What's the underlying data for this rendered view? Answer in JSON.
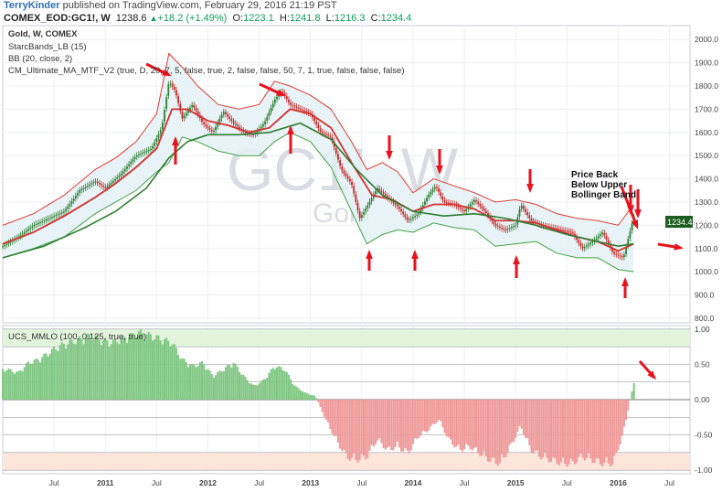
{
  "header": {
    "author": "TerryKinder",
    "published": "published on TradingView.com, February 29, 2016 21:19 PST"
  },
  "symbol_bar": {
    "symbol": "COMEX_EOD:GC1!, W",
    "last": "1238.6",
    "change": "+18.2 (+1.49%)",
    "open_label": "O:",
    "open": "1223.1",
    "high_label": "H:",
    "high": "1241.8",
    "low_label": "L:",
    "low": "1216.3",
    "close_label": "C:",
    "close": "1234.4"
  },
  "main_legend": {
    "line1": "Gold, W, COMEX",
    "line2": "StarcBands_LB (15)",
    "line3": "BB (20, close, 2)",
    "line4": "CM_Ultimate_MA_MTF_V2 (true, D, 20, 7, 5, false, true, 2, false, false, 50, 7, 1, true, false, false, false)"
  },
  "watermark": {
    "big": "GC1!, W",
    "small": "Gold"
  },
  "annotation": {
    "line1": "Price Back",
    "line2": "Below Upper",
    "line3": "Bollinger Band"
  },
  "last_price_tag": "1234.4",
  "osc_legend": "UCS_MMLO (100, 0.125, true, true)",
  "colors": {
    "price_up": "#2e7d32",
    "price_down": "#c62828",
    "bb_upper": "#e53935",
    "bb_lower": "#43a047",
    "ma": "#d32f2f",
    "band_fill": "#e3f1f4",
    "osc_pos": "#81c784",
    "osc_neg": "#ef9a9a",
    "arrow": "#e8121d"
  },
  "chart_data": [
    {
      "type": "line",
      "title": "Gold, W, COMEX",
      "ylim": [
        780,
        2060
      ],
      "y_ticks": [
        "2000.0",
        "1900.0",
        "1800.0",
        "1700.0",
        "1600.0",
        "1500.0",
        "1400.0",
        "1300.0",
        "1200.0",
        "1100.0",
        "1000.0",
        "900.0",
        "800.0"
      ],
      "y_tick_values": [
        2000,
        1900,
        1800,
        1700,
        1600,
        1500,
        1400,
        1300,
        1200,
        1100,
        1000,
        900,
        800
      ],
      "x_ticks": [
        "Jul",
        "2011",
        "Jul",
        "2012",
        "Jul",
        "2013",
        "Jul",
        "2014",
        "Jul",
        "2015",
        "Jul",
        "2016",
        "Jul"
      ],
      "x_tick_values": [
        2010.5,
        2011.0,
        2011.5,
        2012.0,
        2012.5,
        2013.0,
        2013.5,
        2014.0,
        2014.5,
        2015.0,
        2015.5,
        2016.0,
        2016.5
      ],
      "x_range": [
        2010.0,
        2016.7
      ],
      "series": [
        {
          "key": "close",
          "x": [
            2010.0,
            2010.15,
            2010.3,
            2010.45,
            2010.6,
            2010.75,
            2010.9,
            2011.0,
            2011.15,
            2011.3,
            2011.45,
            2011.55,
            2011.62,
            2011.68,
            2011.75,
            2011.85,
            2011.95,
            2012.05,
            2012.15,
            2012.25,
            2012.35,
            2012.45,
            2012.55,
            2012.65,
            2012.72,
            2012.8,
            2012.9,
            2013.0,
            2013.1,
            2013.2,
            2013.3,
            2013.4,
            2013.48,
            2013.55,
            2013.65,
            2013.75,
            2013.85,
            2013.95,
            2014.05,
            2014.15,
            2014.22,
            2014.3,
            2014.4,
            2014.5,
            2014.6,
            2014.7,
            2014.8,
            2014.9,
            2015.0,
            2015.05,
            2015.15,
            2015.25,
            2015.35,
            2015.45,
            2015.55,
            2015.65,
            2015.75,
            2015.85,
            2015.95,
            2016.05,
            2016.15
          ],
          "y": [
            1110,
            1150,
            1200,
            1230,
            1260,
            1350,
            1390,
            1360,
            1420,
            1500,
            1530,
            1620,
            1820,
            1780,
            1660,
            1720,
            1640,
            1600,
            1690,
            1640,
            1600,
            1590,
            1640,
            1740,
            1780,
            1720,
            1700,
            1680,
            1600,
            1580,
            1440,
            1380,
            1230,
            1280,
            1360,
            1320,
            1280,
            1220,
            1250,
            1330,
            1370,
            1300,
            1290,
            1260,
            1310,
            1260,
            1200,
            1180,
            1200,
            1290,
            1220,
            1200,
            1190,
            1180,
            1170,
            1100,
            1130,
            1170,
            1080,
            1060,
            1235
          ]
        },
        {
          "key": "bb_upper",
          "x": [
            2010.0,
            2010.3,
            2010.6,
            2010.9,
            2011.1,
            2011.3,
            2011.5,
            2011.62,
            2011.75,
            2011.9,
            2012.1,
            2012.3,
            2012.5,
            2012.65,
            2012.8,
            2013.0,
            2013.2,
            2013.4,
            2013.55,
            2013.7,
            2013.85,
            2014.0,
            2014.2,
            2014.4,
            2014.6,
            2014.8,
            2015.0,
            2015.2,
            2015.4,
            2015.6,
            2015.8,
            2016.0,
            2016.15
          ],
          "y": [
            1200,
            1250,
            1330,
            1440,
            1490,
            1560,
            1680,
            1940,
            1880,
            1800,
            1720,
            1700,
            1720,
            1820,
            1800,
            1760,
            1700,
            1560,
            1440,
            1470,
            1430,
            1340,
            1400,
            1370,
            1340,
            1300,
            1310,
            1290,
            1250,
            1230,
            1220,
            1200,
            1290
          ]
        },
        {
          "key": "bb_lower",
          "x": [
            2010.0,
            2010.3,
            2010.6,
            2010.9,
            2011.1,
            2011.3,
            2011.5,
            2011.62,
            2011.75,
            2011.9,
            2012.1,
            2012.3,
            2012.5,
            2012.65,
            2012.8,
            2013.0,
            2013.2,
            2013.4,
            2013.55,
            2013.7,
            2013.85,
            2014.0,
            2014.2,
            2014.4,
            2014.6,
            2014.8,
            2015.0,
            2015.2,
            2015.4,
            2015.6,
            2015.8,
            2016.0,
            2016.15
          ],
          "y": [
            1060,
            1100,
            1150,
            1250,
            1300,
            1350,
            1430,
            1470,
            1580,
            1560,
            1520,
            1500,
            1500,
            1560,
            1600,
            1560,
            1450,
            1260,
            1120,
            1160,
            1180,
            1170,
            1210,
            1190,
            1180,
            1110,
            1120,
            1130,
            1080,
            1060,
            1060,
            1010,
            1000
          ]
        },
        {
          "key": "ma",
          "x": [
            2010.0,
            2010.3,
            2010.6,
            2010.9,
            2011.1,
            2011.3,
            2011.5,
            2011.65,
            2011.8,
            2012.0,
            2012.2,
            2012.4,
            2012.6,
            2012.8,
            2013.0,
            2013.2,
            2013.4,
            2013.6,
            2013.8,
            2014.0,
            2014.2,
            2014.4,
            2014.6,
            2014.8,
            2015.0,
            2015.2,
            2015.4,
            2015.6,
            2015.8,
            2016.0,
            2016.15
          ],
          "y": [
            1120,
            1170,
            1240,
            1320,
            1380,
            1450,
            1530,
            1700,
            1700,
            1650,
            1630,
            1600,
            1620,
            1700,
            1680,
            1620,
            1470,
            1330,
            1310,
            1260,
            1290,
            1290,
            1270,
            1220,
            1220,
            1210,
            1180,
            1150,
            1130,
            1090,
            1120
          ]
        },
        {
          "key": "slow_ma",
          "x": [
            2010.0,
            2010.4,
            2010.8,
            2011.1,
            2011.4,
            2011.62,
            2011.8,
            2012.0,
            2012.3,
            2012.6,
            2012.9,
            2013.2,
            2013.45,
            2013.7,
            2014.0,
            2014.3,
            2014.6,
            2014.9,
            2015.2,
            2015.5,
            2015.8,
            2016.0,
            2016.15
          ],
          "y": [
            1060,
            1110,
            1190,
            1260,
            1360,
            1490,
            1560,
            1590,
            1590,
            1600,
            1640,
            1570,
            1440,
            1330,
            1260,
            1240,
            1250,
            1230,
            1200,
            1160,
            1130,
            1110,
            1120
          ]
        }
      ],
      "last_value": 1234.4
    },
    {
      "type": "bar",
      "title": "UCS_MMLO (100, 0.125, true, true)",
      "ylim": [
        -1.05,
        1.05
      ],
      "y_ticks": [
        "1.00",
        "0.50",
        "0.00",
        "-0.50",
        "-1.00"
      ],
      "y_tick_values": [
        1.0,
        0.5,
        0.0,
        -0.5,
        -1.0
      ],
      "x_range": [
        2010.0,
        2016.7
      ],
      "series": [
        {
          "key": "mmlo",
          "x": [
            2010.05,
            2010.15,
            2010.25,
            2010.35,
            2010.45,
            2010.55,
            2010.65,
            2010.75,
            2010.85,
            2010.95,
            2011.05,
            2011.15,
            2011.25,
            2011.35,
            2011.45,
            2011.55,
            2011.65,
            2011.75,
            2011.85,
            2011.95,
            2012.05,
            2012.15,
            2012.25,
            2012.35,
            2012.45,
            2012.55,
            2012.65,
            2012.75,
            2012.85,
            2012.95,
            2013.05,
            2013.15,
            2013.25,
            2013.35,
            2013.45,
            2013.55,
            2013.65,
            2013.75,
            2013.85,
            2013.95,
            2014.05,
            2014.15,
            2014.25,
            2014.35,
            2014.45,
            2014.55,
            2014.65,
            2014.75,
            2014.85,
            2014.95,
            2015.05,
            2015.15,
            2015.25,
            2015.35,
            2015.45,
            2015.55,
            2015.65,
            2015.75,
            2015.85,
            2015.95,
            2016.05,
            2016.15
          ],
          "y": [
            0.45,
            0.4,
            0.55,
            0.6,
            0.7,
            0.8,
            0.85,
            0.9,
            0.95,
            0.9,
            0.85,
            0.9,
            0.95,
            1.0,
            0.95,
            0.9,
            0.85,
            0.6,
            0.5,
            0.55,
            0.35,
            0.45,
            0.55,
            0.35,
            0.2,
            0.3,
            0.5,
            0.45,
            0.2,
            0.1,
            0.05,
            -0.3,
            -0.6,
            -0.85,
            -0.9,
            -0.85,
            -0.6,
            -0.75,
            -0.7,
            -0.8,
            -0.55,
            -0.45,
            -0.3,
            -0.6,
            -0.75,
            -0.7,
            -0.8,
            -0.9,
            -0.95,
            -0.7,
            -0.4,
            -0.75,
            -0.85,
            -0.9,
            -0.95,
            -0.95,
            -0.85,
            -0.9,
            -0.95,
            -0.95,
            -0.5,
            0.25
          ]
        }
      ]
    }
  ]
}
